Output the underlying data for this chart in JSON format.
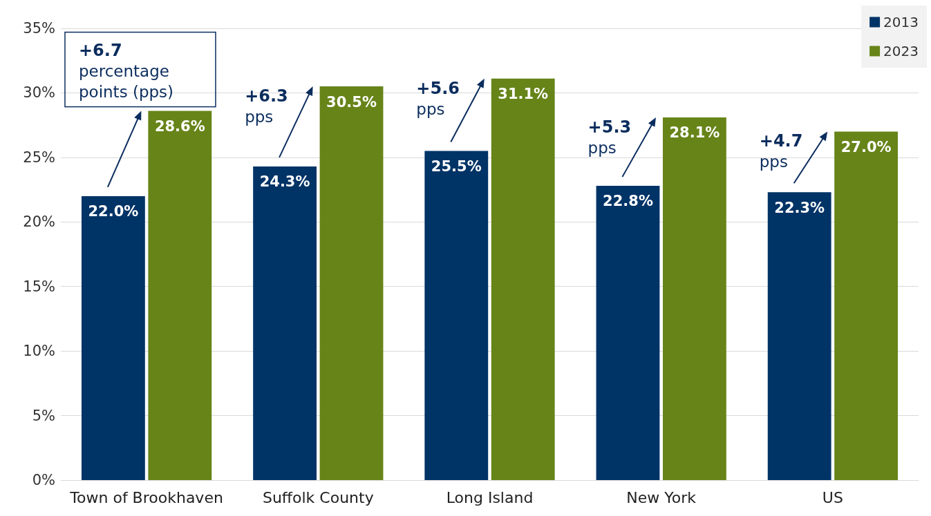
{
  "chart_data": {
    "type": "bar",
    "categories": [
      "Town of Brookhaven",
      "Suffolk County",
      "Long Island",
      "New York",
      "US"
    ],
    "series": [
      {
        "name": "2013",
        "color": "#003366",
        "values": [
          22.0,
          24.3,
          25.5,
          22.8,
          22.3
        ],
        "value_labels": [
          "22.0%",
          "24.3%",
          "25.5%",
          "22.8%",
          "22.3%"
        ]
      },
      {
        "name": "2023",
        "color": "#678419",
        "values": [
          28.6,
          30.5,
          31.1,
          28.1,
          27.0
        ],
        "value_labels": [
          "28.6%",
          "30.5%",
          "31.1%",
          "28.1%",
          "27.0%"
        ]
      }
    ],
    "ylim": [
      0,
      35
    ],
    "yticks": [
      {
        "value": 0,
        "label": "0%"
      },
      {
        "value": 5,
        "label": "5%"
      },
      {
        "value": 10,
        "label": "10%"
      },
      {
        "value": 15,
        "label": "15%"
      },
      {
        "value": 20,
        "label": "20%"
      },
      {
        "value": 25,
        "label": "25%"
      },
      {
        "value": 30,
        "label": "30%"
      },
      {
        "value": 35,
        "label": "35%"
      }
    ],
    "grid": "y",
    "legend": "top right",
    "annotations": [
      {
        "text": "+6.7 percentage points (pps)",
        "x": "Town of Brookhaven",
        "y": 28.6
      },
      {
        "text": "+6.3 pps",
        "x": "Suffolk County",
        "y": 30.5
      },
      {
        "text": "+5.6 pps",
        "x": "Long Island",
        "y": 31.1
      },
      {
        "text": "+5.3 pps",
        "x": "New York",
        "y": 28.1
      },
      {
        "text": "+4.7 pps",
        "x": "US",
        "y": 27.0
      }
    ]
  }
}
